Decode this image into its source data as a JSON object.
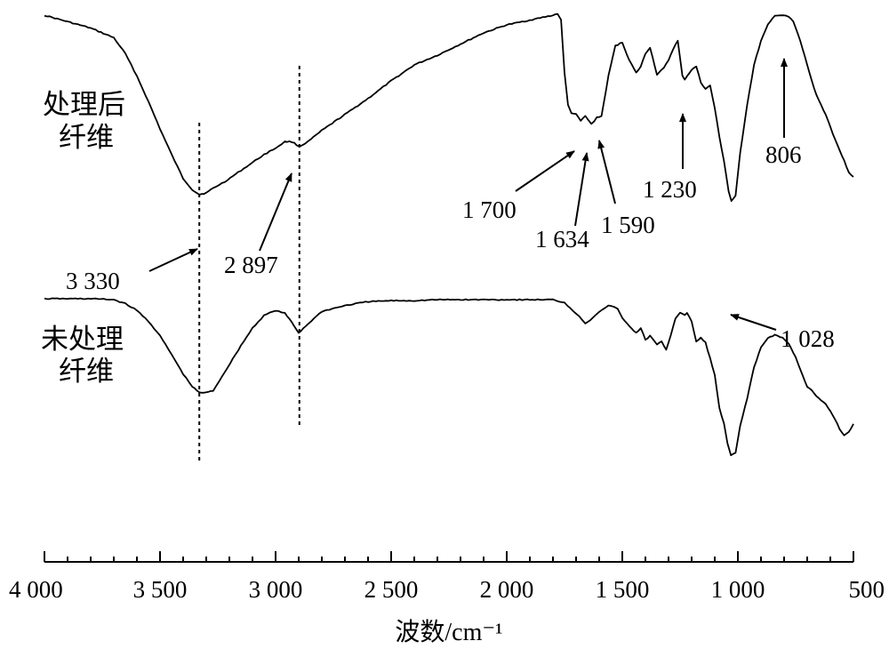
{
  "chart_data": {
    "type": "line",
    "xlabel": "波数/cm⁻¹",
    "ylabel": "",
    "xlim": [
      4000,
      500
    ],
    "x_reversed": true,
    "grid": false,
    "x_ticks": [
      {
        "value": 4000,
        "label": "4 000"
      },
      {
        "value": 3500,
        "label": "3 500"
      },
      {
        "value": 3000,
        "label": "3 000"
      },
      {
        "value": 2500,
        "label": "2 500"
      },
      {
        "value": 2000,
        "label": "2 000"
      },
      {
        "value": 1500,
        "label": "1 500"
      },
      {
        "value": 1000,
        "label": "1 000"
      },
      {
        "value": 500,
        "label": "500"
      }
    ],
    "series": [
      {
        "name": "处理后\n纤维",
        "label_lines": [
          "处理后",
          "纤维"
        ],
        "transmittance_relative": [
          [
            4000,
            0.96
          ],
          [
            3900,
            0.92
          ],
          [
            3800,
            0.88
          ],
          [
            3700,
            0.82
          ],
          [
            3650,
            0.72
          ],
          [
            3600,
            0.58
          ],
          [
            3550,
            0.42
          ],
          [
            3500,
            0.25
          ],
          [
            3450,
            0.09
          ],
          [
            3400,
            -0.06
          ],
          [
            3360,
            -0.13
          ],
          [
            3330,
            -0.16
          ],
          [
            3300,
            -0.15
          ],
          [
            3270,
            -0.12
          ],
          [
            3220,
            -0.08
          ],
          [
            3150,
            -0.01
          ],
          [
            3100,
            0.04
          ],
          [
            3050,
            0.09
          ],
          [
            3000,
            0.13
          ],
          [
            2960,
            0.17
          ],
          [
            2930,
            0.17
          ],
          [
            2897,
            0.14
          ],
          [
            2860,
            0.17
          ],
          [
            2800,
            0.24
          ],
          [
            2700,
            0.34
          ],
          [
            2600,
            0.44
          ],
          [
            2500,
            0.55
          ],
          [
            2400,
            0.65
          ],
          [
            2300,
            0.71
          ],
          [
            2200,
            0.78
          ],
          [
            2100,
            0.85
          ],
          [
            2000,
            0.9
          ],
          [
            1900,
            0.93
          ],
          [
            1800,
            0.96
          ],
          [
            1780,
            0.97
          ],
          [
            1765,
            0.93
          ],
          [
            1750,
            0.6
          ],
          [
            1735,
            0.4
          ],
          [
            1720,
            0.35
          ],
          [
            1700,
            0.34
          ],
          [
            1680,
            0.3
          ],
          [
            1660,
            0.33
          ],
          [
            1634,
            0.28
          ],
          [
            1610,
            0.32
          ],
          [
            1590,
            0.33
          ],
          [
            1560,
            0.58
          ],
          [
            1530,
            0.77
          ],
          [
            1500,
            0.79
          ],
          [
            1470,
            0.68
          ],
          [
            1440,
            0.6
          ],
          [
            1420,
            0.64
          ],
          [
            1400,
            0.72
          ],
          [
            1380,
            0.76
          ],
          [
            1350,
            0.59
          ],
          [
            1320,
            0.63
          ],
          [
            1300,
            0.68
          ],
          [
            1280,
            0.75
          ],
          [
            1260,
            0.8
          ],
          [
            1240,
            0.58
          ],
          [
            1230,
            0.56
          ],
          [
            1200,
            0.62
          ],
          [
            1180,
            0.64
          ],
          [
            1160,
            0.54
          ],
          [
            1140,
            0.5
          ],
          [
            1120,
            0.52
          ],
          [
            1100,
            0.38
          ],
          [
            1080,
            0.2
          ],
          [
            1060,
            0.05
          ],
          [
            1040,
            -0.14
          ],
          [
            1028,
            -0.2
          ],
          [
            1010,
            -0.17
          ],
          [
            990,
            0.1
          ],
          [
            960,
            0.4
          ],
          [
            930,
            0.65
          ],
          [
            900,
            0.8
          ],
          [
            870,
            0.9
          ],
          [
            840,
            0.96
          ],
          [
            806,
            0.96
          ],
          [
            780,
            0.95
          ],
          [
            760,
            0.92
          ],
          [
            730,
            0.8
          ],
          [
            700,
            0.65
          ],
          [
            670,
            0.5
          ],
          [
            650,
            0.43
          ],
          [
            620,
            0.34
          ],
          [
            590,
            0.22
          ],
          [
            560,
            0.12
          ],
          [
            540,
            0.05
          ],
          [
            520,
            -0.02
          ],
          [
            500,
            -0.05
          ]
        ]
      },
      {
        "name": "未处理\n纤维",
        "label_lines": [
          "未处理",
          "纤维"
        ],
        "transmittance_relative": [
          [
            4000,
            0.9
          ],
          [
            3900,
            0.9
          ],
          [
            3800,
            0.9
          ],
          [
            3700,
            0.89
          ],
          [
            3650,
            0.85
          ],
          [
            3600,
            0.78
          ],
          [
            3550,
            0.67
          ],
          [
            3500,
            0.52
          ],
          [
            3450,
            0.33
          ],
          [
            3400,
            0.13
          ],
          [
            3360,
            0.0
          ],
          [
            3330,
            -0.06
          ],
          [
            3300,
            -0.06
          ],
          [
            3270,
            -0.04
          ],
          [
            3220,
            0.15
          ],
          [
            3150,
            0.42
          ],
          [
            3100,
            0.6
          ],
          [
            3050,
            0.73
          ],
          [
            3000,
            0.78
          ],
          [
            2960,
            0.75
          ],
          [
            2930,
            0.66
          ],
          [
            2900,
            0.55
          ],
          [
            2870,
            0.62
          ],
          [
            2800,
            0.77
          ],
          [
            2700,
            0.83
          ],
          [
            2600,
            0.87
          ],
          [
            2500,
            0.88
          ],
          [
            2400,
            0.88
          ],
          [
            2300,
            0.89
          ],
          [
            2200,
            0.89
          ],
          [
            2100,
            0.89
          ],
          [
            2000,
            0.89
          ],
          [
            1900,
            0.89
          ],
          [
            1800,
            0.89
          ],
          [
            1750,
            0.86
          ],
          [
            1700,
            0.75
          ],
          [
            1660,
            0.65
          ],
          [
            1640,
            0.68
          ],
          [
            1600,
            0.77
          ],
          [
            1560,
            0.83
          ],
          [
            1520,
            0.8
          ],
          [
            1500,
            0.7
          ],
          [
            1470,
            0.62
          ],
          [
            1440,
            0.55
          ],
          [
            1420,
            0.6
          ],
          [
            1400,
            0.48
          ],
          [
            1380,
            0.52
          ],
          [
            1350,
            0.43
          ],
          [
            1330,
            0.46
          ],
          [
            1310,
            0.38
          ],
          [
            1290,
            0.53
          ],
          [
            1270,
            0.7
          ],
          [
            1250,
            0.76
          ],
          [
            1230,
            0.73
          ],
          [
            1220,
            0.75
          ],
          [
            1200,
            0.67
          ],
          [
            1180,
            0.46
          ],
          [
            1160,
            0.5
          ],
          [
            1140,
            0.45
          ],
          [
            1120,
            0.29
          ],
          [
            1100,
            0.12
          ],
          [
            1080,
            -0.22
          ],
          [
            1060,
            -0.38
          ],
          [
            1045,
            -0.58
          ],
          [
            1030,
            -0.7
          ],
          [
            1010,
            -0.68
          ],
          [
            990,
            -0.4
          ],
          [
            960,
            -0.12
          ],
          [
            930,
            0.2
          ],
          [
            900,
            0.4
          ],
          [
            870,
            0.5
          ],
          [
            840,
            0.53
          ],
          [
            806,
            0.5
          ],
          [
            780,
            0.44
          ],
          [
            750,
            0.3
          ],
          [
            720,
            0.12
          ],
          [
            700,
            0.0
          ],
          [
            680,
            -0.04
          ],
          [
            660,
            -0.1
          ],
          [
            640,
            -0.14
          ],
          [
            620,
            -0.18
          ],
          [
            600,
            -0.25
          ],
          [
            580,
            -0.33
          ],
          [
            560,
            -0.43
          ],
          [
            540,
            -0.5
          ],
          [
            520,
            -0.46
          ],
          [
            500,
            -0.38
          ]
        ]
      }
    ],
    "reference_lines": [
      {
        "x": 3330,
        "style": "dotted"
      },
      {
        "x": 2897,
        "style": "dotted"
      }
    ],
    "annotations": [
      {
        "text": "3 330",
        "x": 3330
      },
      {
        "text": "2 897",
        "x": 2897
      },
      {
        "text": "1 700",
        "x": 1700
      },
      {
        "text": "1 634",
        "x": 1634
      },
      {
        "text": "1 590",
        "x": 1590
      },
      {
        "text": "1 230",
        "x": 1230
      },
      {
        "text": "806",
        "x": 806
      },
      {
        "text": "1 028",
        "x": 1028
      }
    ]
  }
}
